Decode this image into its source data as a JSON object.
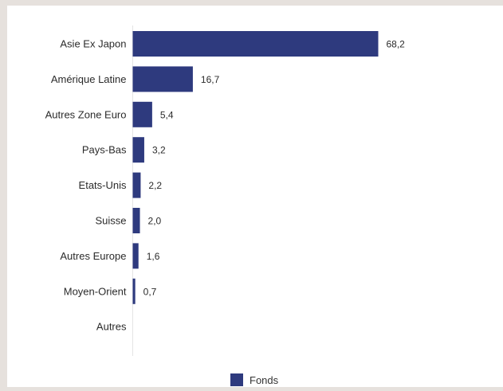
{
  "chart_data": {
    "type": "bar",
    "orientation": "horizontal",
    "categories": [
      "Asie Ex Japon",
      "Amérique Latine",
      "Autres Zone Euro",
      "Pays-Bas",
      "Etats-Unis",
      "Suisse",
      "Autres Europe",
      "Moyen-Orient",
      "Autres"
    ],
    "series": [
      {
        "name": "Fonds",
        "values": [
          68.2,
          16.7,
          5.4,
          3.2,
          2.2,
          2.0,
          1.6,
          0.7,
          0
        ],
        "labels": [
          "68,2",
          "16,7",
          "5,4",
          "3,2",
          "2,2",
          "2,0",
          "1,6",
          "0,7",
          ""
        ],
        "color": "#2e3a7e"
      }
    ],
    "title": "",
    "xlabel": "",
    "ylabel": "",
    "xlim": [
      0,
      100
    ],
    "grid": false,
    "legend_position": "bottom-center"
  }
}
